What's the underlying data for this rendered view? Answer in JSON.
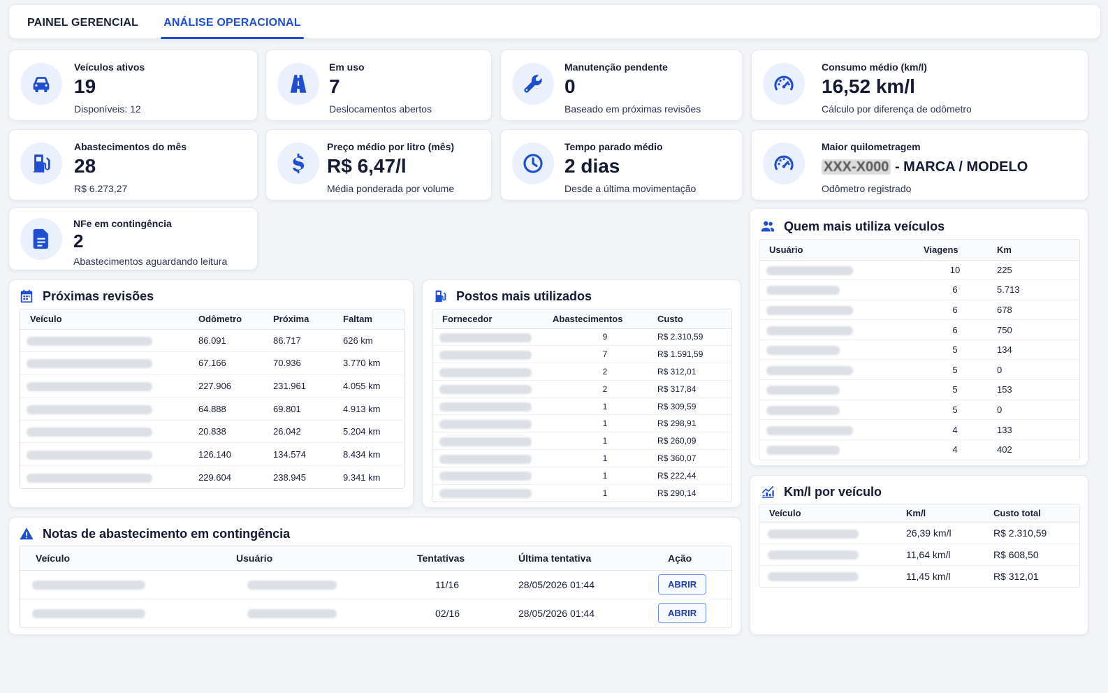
{
  "tabs": [
    {
      "label": "PAINEL GERENCIAL",
      "active": false
    },
    {
      "label": "ANÁLISE OPERACIONAL",
      "active": true
    }
  ],
  "kpis": {
    "veiculos_ativos": {
      "label": "Veículos ativos",
      "value": "19",
      "sub": "Disponíveis: 12",
      "icon": "car-icon"
    },
    "em_uso": {
      "label": "Em uso",
      "value": "7",
      "sub": "Deslocamentos abertos",
      "icon": "road-icon"
    },
    "manutencao": {
      "label": "Manutenção pendente",
      "value": "0",
      "sub": "Baseado em próximas revisões",
      "icon": "wrench-icon"
    },
    "consumo": {
      "label": "Consumo médio (km/l)",
      "value": "16,52 km/l",
      "sub": "Cálculo por diferença de odômetro",
      "icon": "speedometer-icon"
    },
    "abastecimentos": {
      "label": "Abastecimentos do mês",
      "value": "28",
      "sub": "R$ 6.273,27",
      "icon": "fuel-pump-icon"
    },
    "preco_medio": {
      "label": "Preço médio por litro (mês)",
      "value": "R$ 6,47/l",
      "sub": "Média ponderada por volume",
      "icon": "dollar-icon"
    },
    "tempo_parado": {
      "label": "Tempo parado médio",
      "value": "2 dias",
      "sub": "Desde a última movimentação",
      "icon": "clock-icon"
    },
    "maior_km": {
      "label": "Maior quilometragem",
      "plate": "XXX-X000",
      "value_rest": " - MARCA / MODELO",
      "sub": "Odômetro registrado",
      "icon": "speedometer-icon"
    },
    "nfe": {
      "label": "NFe em contingência",
      "value": "2",
      "sub": "Abastecimentos aguardando leitura",
      "icon": "document-icon"
    }
  },
  "revisoes": {
    "title": "Próximas revisões",
    "headers": [
      "Veículo",
      "Odômetro",
      "Próxima",
      "Faltam"
    ],
    "rows": [
      [
        "86.091",
        "86.717",
        "626 km"
      ],
      [
        "67.166",
        "70.936",
        "3.770 km"
      ],
      [
        "227.906",
        "231.961",
        "4.055 km"
      ],
      [
        "64.888",
        "69.801",
        "4.913 km"
      ],
      [
        "20.838",
        "26.042",
        "5.204 km"
      ],
      [
        "126.140",
        "134.574",
        "8.434 km"
      ],
      [
        "229.604",
        "238.945",
        "9.341 km"
      ]
    ]
  },
  "postos": {
    "title": "Postos mais utilizados",
    "headers": [
      "Fornecedor",
      "Abastecimentos",
      "Custo"
    ],
    "rows": [
      [
        "9",
        "R$ 2.310,59"
      ],
      [
        "7",
        "R$ 1.591,59"
      ],
      [
        "2",
        "R$ 312,01"
      ],
      [
        "2",
        "R$ 317,84"
      ],
      [
        "1",
        "R$ 309,59"
      ],
      [
        "1",
        "R$ 298,91"
      ],
      [
        "1",
        "R$ 260,09"
      ],
      [
        "1",
        "R$ 360,07"
      ],
      [
        "1",
        "R$ 222,44"
      ],
      [
        "1",
        "R$ 290,14"
      ]
    ]
  },
  "usuarios": {
    "title": "Quem mais utiliza veículos",
    "headers": [
      "Usuário",
      "Viagens",
      "Km"
    ],
    "rows": [
      [
        "10",
        "225"
      ],
      [
        "6",
        "5.713"
      ],
      [
        "6",
        "678"
      ],
      [
        "6",
        "750"
      ],
      [
        "5",
        "134"
      ],
      [
        "5",
        "0"
      ],
      [
        "5",
        "153"
      ],
      [
        "5",
        "0"
      ],
      [
        "4",
        "133"
      ],
      [
        "4",
        "402"
      ]
    ]
  },
  "kml": {
    "title": "Km/l por veículo",
    "headers": [
      "Veículo",
      "Km/l",
      "Custo total"
    ],
    "rows": [
      [
        "26,39 km/l",
        "R$ 2.310,59"
      ],
      [
        "11,64 km/l",
        "R$ 608,50"
      ],
      [
        "11,45 km/l",
        "R$ 312,01"
      ]
    ]
  },
  "notas": {
    "title": "Notas de abastecimento em contingência",
    "headers": [
      "Veículo",
      "Usuário",
      "Tentativas",
      "Última tentativa",
      "Ação"
    ],
    "rows": [
      [
        "11/16",
        "28/05/2026 01:44",
        "ABRIR"
      ],
      [
        "02/16",
        "28/05/2026 01:44",
        "ABRIR"
      ]
    ]
  }
}
